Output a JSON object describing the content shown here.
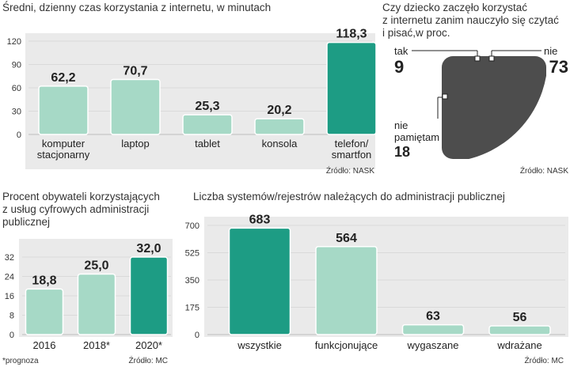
{
  "colors": {
    "panel": "#eaeaea",
    "bar_light": "#a6d9c6",
    "bar_dark": "#1d9c84",
    "pie_dark": "#4d4d4d",
    "pie_gray": "#a3a3a3",
    "pie_teal": "#1d9c84",
    "grid": "#dadada"
  },
  "chart_data": [
    {
      "id": "internet-time",
      "type": "bar",
      "title": "Średni, dzienny czas korzystania z internetu, w minutach",
      "categories": [
        [
          "komputer",
          "stacjonarny"
        ],
        [
          "laptop"
        ],
        [
          "tablet"
        ],
        [
          "konsola"
        ],
        [
          "telefon/",
          "smartfon"
        ]
      ],
      "values": [
        62.2,
        70.7,
        25.3,
        20.2,
        118.3
      ],
      "value_labels": [
        "62,2",
        "70,7",
        "25,3",
        "20,2",
        "118,3"
      ],
      "highlight": [
        false,
        false,
        false,
        false,
        true
      ],
      "yticks": [
        0,
        30,
        60,
        90,
        120
      ],
      "ytick_labels": [
        "0",
        "30",
        "60",
        "90",
        "120"
      ],
      "ylim": [
        0,
        120
      ],
      "source": "Źródło: NASK"
    },
    {
      "id": "internet-before-writing",
      "type": "pie",
      "title": [
        "Czy dziecko zaczęło korzystać",
        "z internetu zanim nauczyło się czytać",
        "i pisać,w proc."
      ],
      "slices": [
        {
          "label": "tak",
          "value": 9,
          "value_label": "9",
          "color": "#1d9c84"
        },
        {
          "label": "nie",
          "value": 73,
          "value_label": "73",
          "color": "#4d4d4d"
        },
        {
          "label": [
            "nie",
            "pamiętam"
          ],
          "value": 18,
          "value_label": "18",
          "color": "#a3a3a3"
        }
      ],
      "source": "Źródło: NASK"
    },
    {
      "id": "digital-admin-services",
      "type": "bar",
      "title": [
        "Procent obywateli korzystających",
        "z usług cyfrowych administracji",
        "publicznej"
      ],
      "categories": [
        [
          "2016"
        ],
        [
          "2018*"
        ],
        [
          "2020*"
        ]
      ],
      "values": [
        18.8,
        25.0,
        32.0
      ],
      "value_labels": [
        "18,8",
        "25,0",
        "32,0"
      ],
      "highlight": [
        false,
        false,
        true
      ],
      "yticks": [
        0,
        8,
        16,
        24,
        32
      ],
      "ytick_labels": [
        "0",
        "8",
        "16",
        "24",
        "32"
      ],
      "ylim": [
        0,
        32
      ],
      "footnote": "*prognoza",
      "source": "Źródło: MC"
    },
    {
      "id": "admin-registries",
      "type": "bar",
      "title": "Liczba systemów/rejestrów należących do administracji publicznej",
      "categories": [
        [
          "wszystkie"
        ],
        [
          "funkcjonujące"
        ],
        [
          "wygaszane"
        ],
        [
          "wdrażane"
        ]
      ],
      "values": [
        683,
        564,
        63,
        56
      ],
      "value_labels": [
        "683",
        "564",
        "63",
        "56"
      ],
      "highlight": [
        true,
        false,
        false,
        false
      ],
      "yticks": [
        0,
        175,
        350,
        525,
        700
      ],
      "ytick_labels": [
        "0",
        "175",
        "350",
        "525",
        "700"
      ],
      "ylim": [
        0,
        700
      ],
      "source": "Źródło: MC"
    }
  ]
}
